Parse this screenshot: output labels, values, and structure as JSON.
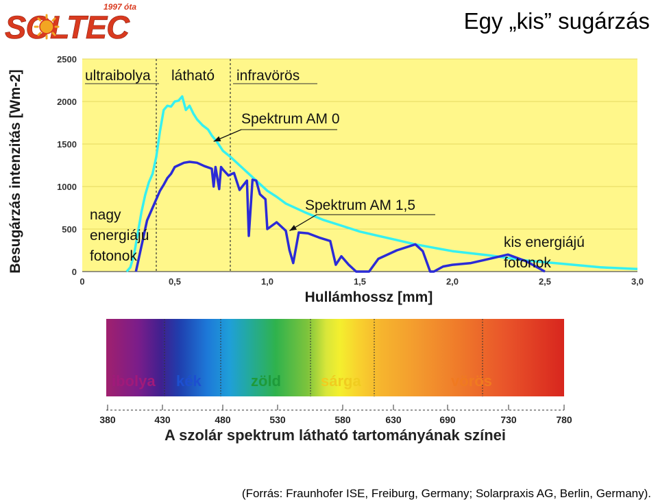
{
  "logo": {
    "text": "SOLTEC",
    "subtext": "1997 óta",
    "colors": {
      "red": "#d93a1f",
      "gold": "#f2a622"
    }
  },
  "page_title": "Egy „kis” sugárzás",
  "chart_data": [
    {
      "type": "line",
      "title": "",
      "xlabel": "Hullámhossz [mm]",
      "ylabel": "Besugárzás intenzitás [Wm-2]",
      "xlim": [
        0,
        3.0
      ],
      "ylim": [
        0,
        2500
      ],
      "x_ticks": [
        "0",
        "0,5",
        "1,0",
        "1,5",
        "2,0",
        "2,5",
        "3,0"
      ],
      "y_ticks": [
        "0",
        "500",
        "1000",
        "1500",
        "2000",
        "2500"
      ],
      "grid": true,
      "background": "#fff78a",
      "region_boundaries": [
        0.4,
        0.8
      ],
      "region_labels": [
        "ultraibolya",
        "látható",
        "infravörös"
      ],
      "annotations": [
        {
          "text": "Spektrum AM 0",
          "x": 0.71,
          "y": 1530
        },
        {
          "text": "Spektrum AM 1,5",
          "x": 1.12,
          "y": 480
        },
        {
          "text": "nagy energiájú fotonok"
        },
        {
          "text": "kis energiájú fotonok"
        }
      ],
      "series": [
        {
          "color": "#36f0f0",
          "x": [
            0.24,
            0.26,
            0.28,
            0.3,
            0.32,
            0.34,
            0.36,
            0.38,
            0.4,
            0.42,
            0.44,
            0.46,
            0.48,
            0.5,
            0.52,
            0.54,
            0.56,
            0.58,
            0.6,
            0.62,
            0.65,
            0.68,
            0.7,
            0.73,
            0.76,
            0.8,
            0.85,
            0.9,
            0.95,
            1.0,
            1.05,
            1.1,
            1.2,
            1.3,
            1.4,
            1.5,
            1.6,
            1.7,
            1.8,
            1.9,
            2.0,
            2.2,
            2.4,
            2.6,
            2.8,
            3.0
          ],
          "y": [
            0,
            50,
            200,
            450,
            700,
            900,
            1050,
            1150,
            1350,
            1650,
            1900,
            1950,
            1940,
            2000,
            2010,
            2060,
            1900,
            1950,
            1860,
            1790,
            1720,
            1670,
            1600,
            1520,
            1420,
            1350,
            1250,
            1150,
            1050,
            950,
            880,
            800,
            700,
            610,
            540,
            470,
            420,
            370,
            320,
            280,
            240,
            190,
            130,
            90,
            50,
            30
          ]
        },
        {
          "color": "#2b2bd6",
          "x": [
            0.29,
            0.31,
            0.33,
            0.35,
            0.37,
            0.38,
            0.4,
            0.42,
            0.44,
            0.46,
            0.48,
            0.5,
            0.52,
            0.55,
            0.58,
            0.62,
            0.66,
            0.7,
            0.71,
            0.72,
            0.74,
            0.75,
            0.76,
            0.79,
            0.82,
            0.85,
            0.89,
            0.9,
            0.92,
            0.94,
            0.96,
            0.99,
            1.0,
            1.05,
            1.1,
            1.12,
            1.14,
            1.17,
            1.22,
            1.28,
            1.34,
            1.37,
            1.4,
            1.44,
            1.48,
            1.55,
            1.6,
            1.7,
            1.8,
            1.84,
            1.88,
            1.9,
            1.95,
            2.0,
            2.1,
            2.2,
            2.3,
            2.4,
            2.5
          ],
          "y": [
            0,
            200,
            400,
            600,
            700,
            750,
            850,
            950,
            1020,
            1100,
            1150,
            1230,
            1250,
            1280,
            1290,
            1280,
            1240,
            1210,
            1000,
            1230,
            970,
            1230,
            1200,
            1130,
            1160,
            960,
            1070,
            420,
            1080,
            1070,
            910,
            850,
            500,
            580,
            480,
            250,
            100,
            460,
            450,
            400,
            360,
            80,
            180,
            80,
            0,
            0,
            150,
            250,
            320,
            240,
            0,
            0,
            60,
            80,
            100,
            150,
            200,
            120,
            0
          ]
        }
      ]
    },
    {
      "type": "bar",
      "title": "A szolár spektrum látható tartományának színei",
      "xlabel": "",
      "ylabel": "",
      "xlim": [
        380,
        780
      ],
      "x_ticks": [
        "380",
        "430",
        "480",
        "530",
        "580",
        "630",
        "690",
        "730",
        "780"
      ],
      "color_labels": [
        "ibolya",
        "kék",
        "zöld",
        "sárga",
        "vörös"
      ],
      "color_label_colors": [
        "#a01a7a",
        "#1d4fd0",
        "#1e9a3a",
        "#f0cc20",
        "#f07a20"
      ]
    }
  ],
  "source_note": "(Forrás: Fraunhofer ISE, Freiburg, Germany; Solarpraxis AG, Berlin, Germany)."
}
